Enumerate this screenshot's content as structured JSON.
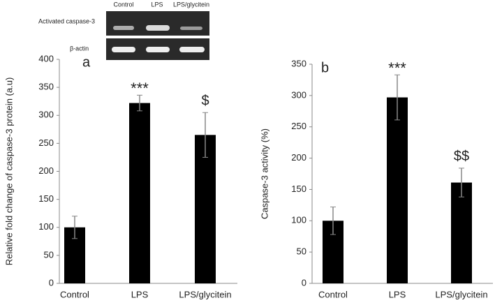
{
  "chart_data": [
    {
      "type": "bar",
      "panel_label": "a",
      "ylabel": "Relative fold change of caspase-3 protein (a.u)",
      "categories": [
        "Control",
        "LPS",
        "LPS/glycitein"
      ],
      "values": [
        100,
        322,
        265
      ],
      "errors": [
        20,
        14,
        40
      ],
      "annotations": [
        null,
        "***",
        "$"
      ],
      "color": "#000000",
      "ylim": [
        0,
        400
      ],
      "yticks": [
        0,
        50,
        100,
        150,
        200,
        250,
        300,
        350,
        400
      ]
    },
    {
      "type": "bar",
      "panel_label": "b",
      "ylabel": "Caspase-3 activity (%)",
      "categories": [
        "Control",
        "LPS",
        "LPS/glycitein"
      ],
      "values": [
        100,
        297,
        161
      ],
      "errors": [
        22,
        36,
        23
      ],
      "annotations": [
        null,
        "***",
        "$$"
      ],
      "color": "#000000",
      "ylim": [
        0,
        350
      ],
      "yticks": [
        0,
        50,
        100,
        150,
        200,
        250,
        300,
        350
      ]
    }
  ],
  "blot": {
    "lanes": [
      "Control",
      "LPS",
      "LPS/glycitein"
    ],
    "rows": [
      "Activated caspase-3",
      "β-actin"
    ]
  }
}
